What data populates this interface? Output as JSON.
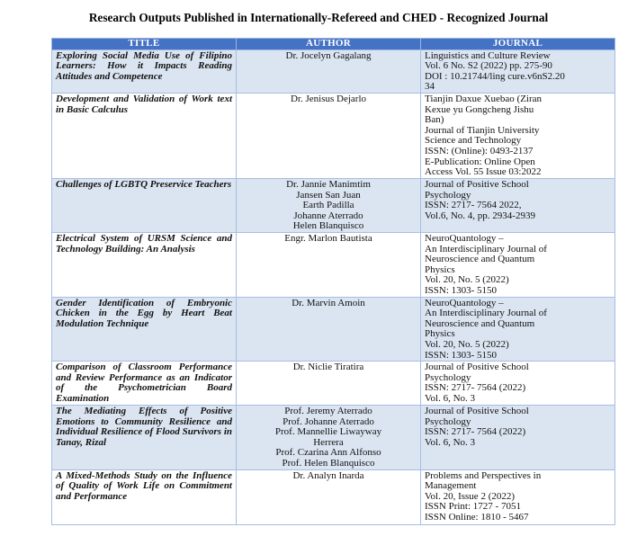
{
  "title": "Research Outputs Published in Internationally-Refereed and CHED - Recognized Journal",
  "headers": [
    "TITLE",
    "AUTHOR",
    "JOURNAL"
  ],
  "rows": [
    {
      "title": "Exploring Social Media Use of Filipino Learners: How it Impacts Reading Attitudes and Competence",
      "authors": [
        "Dr. Jocelyn Gagalang"
      ],
      "journal": [
        "Linguistics and Culture Review",
        "Vol. 6 No. S2 (2022) pp. 275-90",
        "DOI : 10.21744/ling cure.v6nS2.20",
        "34"
      ]
    },
    {
      "title": "Development and Validation of Work text in Basic Calculus",
      "authors": [
        "Dr. Jenisus Dejarlo"
      ],
      "journal": [
        "Tianjin Daxue Xuebao (Ziran",
        "Kexue yu Gongcheng Jishu",
        "Ban)",
        "Journal of Tianjin University",
        "Science and Technology",
        "ISSN: (Online): 0493-2137",
        "E-Publication: Online Open",
        "Access Vol. 55 Issue 03:2022"
      ]
    },
    {
      "title": "Challenges of LGBTQ Preservice Teachers",
      "authors": [
        "Dr. Jannie Manimtim",
        "Jansen San Juan",
        "Earth Padilla",
        "Johanne Aterrado",
        "Helen Blanquisco"
      ],
      "journal": [
        "Journal of Positive School",
        "Psychology",
        "ISSN: 2717- 7564 2022,",
        "Vol.6, No. 4, pp. 2934-2939"
      ]
    },
    {
      "title": "Electrical System of URSM Science and Technology Building: An Analysis",
      "authors": [
        "Engr. Marlon Bautista"
      ],
      "journal": [
        "NeuroQuantology –",
        "An Interdisciplinary Journal of",
        "Neuroscience and Quantum",
        "Physics",
        "Vol. 20, No. 5 (2022)",
        "ISSN: 1303- 5150"
      ]
    },
    {
      "title": "Gender Identification of Embryonic Chicken in the Egg by Heart Beat Modulation Technique",
      "authors": [
        "Dr. Marvin Amoin"
      ],
      "journal": [
        "NeuroQuantology –",
        "An Interdisciplinary Journal of",
        "Neuroscience and Quantum",
        "Physics",
        "Vol. 20, No. 5 (2022)",
        "ISSN: 1303- 5150"
      ]
    },
    {
      "title": "Comparison of Classroom Performance and Review Performance as an Indicator of the Psychometrician Board Examination",
      "authors": [
        "Dr. Niclie Tiratira"
      ],
      "journal": [
        "Journal of Positive School",
        "Psychology",
        "ISSN: 2717- 7564 (2022)",
        "Vol. 6, No. 3"
      ]
    },
    {
      "title": "The Mediating Effects of Positive Emotions to Community Resilience and Individual Resilience of Flood Survivors in Tanay, Rizal",
      "authors": [
        "Prof. Jeremy Aterrado",
        "Prof. Johanne Aterrado",
        "Prof. Mannellie Liwayway",
        "Herrera",
        "Prof. Czarina Ann Alfonso",
        "Prof. Helen Blanquisco"
      ],
      "journal": [
        "Journal of Positive School",
        "Psychology",
        "ISSN: 2717- 7564 (2022)",
        "Vol. 6, No. 3"
      ]
    },
    {
      "title": "A Mixed-Methods Study on the Influence of Quality of Work Life on Commitment and Performance",
      "authors": [
        "Dr. Analyn Inarda"
      ],
      "journal": [
        "Problems and Perspectives in",
        "Management",
        "Vol. 20, Issue 2 (2022)",
        "ISSN Print: 1727 - 7051",
        "ISSN Online: 1810 - 5467"
      ]
    }
  ],
  "colors": {
    "header_bg": "#4472c4",
    "row_shade": "#dbe5f1",
    "border": "#a7bde3"
  }
}
